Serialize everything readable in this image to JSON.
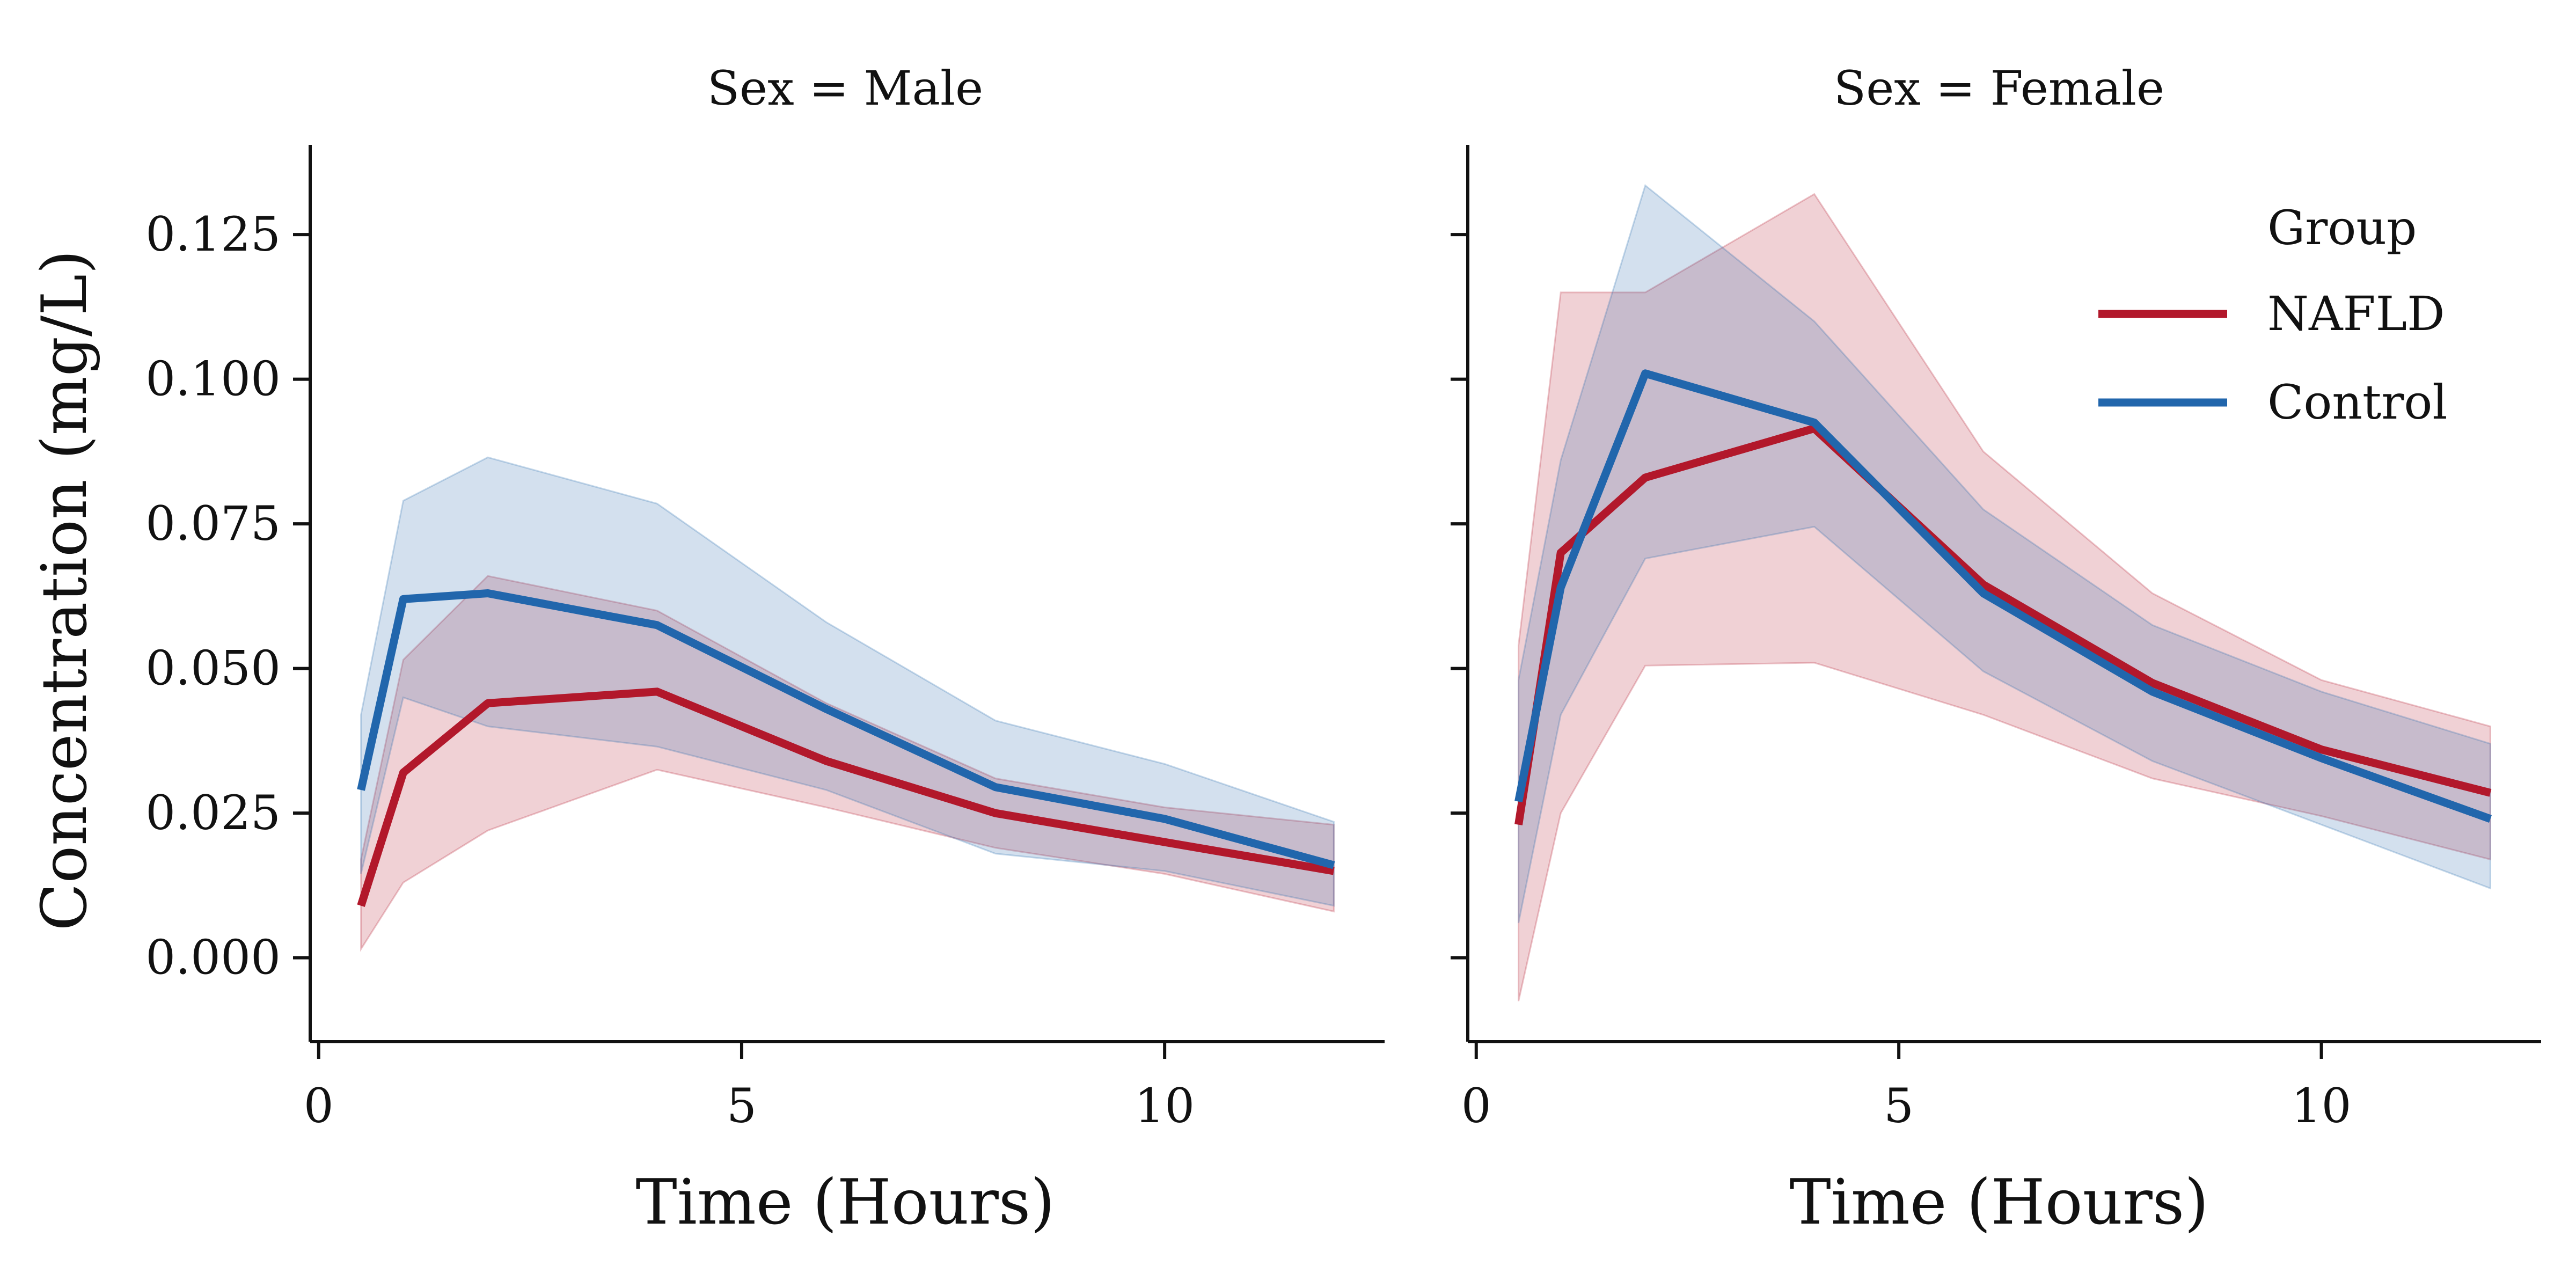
{
  "chart_data": {
    "type": "line",
    "ylabel": "Concentration (mg/L)",
    "xlabel": "Time (Hours)",
    "x_ticks": [
      0,
      5,
      10
    ],
    "y_ticks": [
      "0.000",
      "0.025",
      "0.050",
      "0.075",
      "0.100",
      "0.125"
    ],
    "y_tick_values": [
      0,
      0.025,
      0.05,
      0.075,
      0.1,
      0.125
    ],
    "xlim": [
      -0.1,
      12.6
    ],
    "ylim": [
      -0.0145,
      0.1405
    ],
    "shared_y": true,
    "legend": {
      "title": "Group",
      "placement": "top-right",
      "entries": [
        "NAFLD",
        "Control"
      ]
    },
    "colors": {
      "NAFLD": "#b2182b",
      "Control": "#2166ac"
    },
    "x": [
      0.5,
      1,
      2,
      4,
      6,
      8,
      10,
      12
    ],
    "panels": [
      {
        "title": "Sex = Male",
        "series": [
          {
            "name": "NAFLD",
            "mean": [
              0.009,
              0.032,
              0.044,
              0.046,
              0.034,
              0.025,
              0.02,
              0.015
            ],
            "lower": [
              0.0015,
              0.013,
              0.022,
              0.0325,
              0.026,
              0.019,
              0.0145,
              0.008
            ],
            "upper": [
              0.017,
              0.0515,
              0.066,
              0.06,
              0.044,
              0.031,
              0.026,
              0.023
            ]
          },
          {
            "name": "Control",
            "mean": [
              0.029,
              0.062,
              0.063,
              0.0575,
              0.043,
              0.0295,
              0.024,
              0.016
            ],
            "lower": [
              0.0145,
              0.045,
              0.04,
              0.0365,
              0.029,
              0.018,
              0.015,
              0.009
            ],
            "upper": [
              0.042,
              0.079,
              0.0865,
              0.0785,
              0.058,
              0.041,
              0.0335,
              0.0235
            ]
          }
        ]
      },
      {
        "title": "Sex = Female",
        "series": [
          {
            "name": "NAFLD",
            "mean": [
              0.023,
              0.07,
              0.083,
              0.0915,
              0.0645,
              0.0475,
              0.036,
              0.0285
            ],
            "lower": [
              -0.0075,
              0.025,
              0.0505,
              0.051,
              0.042,
              0.031,
              0.0245,
              0.017
            ],
            "upper": [
              0.054,
              0.115,
              0.115,
              0.132,
              0.0875,
              0.063,
              0.048,
              0.04
            ]
          },
          {
            "name": "Control",
            "mean": [
              0.027,
              0.064,
              0.101,
              0.0925,
              0.063,
              0.046,
              0.0345,
              0.024
            ],
            "lower": [
              0.006,
              0.042,
              0.069,
              0.0745,
              0.0495,
              0.034,
              0.023,
              0.012
            ],
            "upper": [
              0.048,
              0.086,
              0.1335,
              0.11,
              0.0775,
              0.0575,
              0.046,
              0.037
            ]
          }
        ]
      }
    ]
  }
}
